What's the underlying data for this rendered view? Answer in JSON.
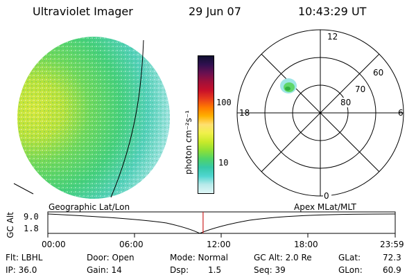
{
  "header": {
    "title": "Ultraviolet Imager",
    "date": "29 Jun 07",
    "time": "10:43:29 UT"
  },
  "colorbar": {
    "unit_label": "photon cm⁻²s⁻¹",
    "ticks": [
      "100",
      "10"
    ],
    "colors": [
      "#dff6f6",
      "#b8eaea",
      "#4fd6d0",
      "#36c9a8",
      "#4fd46a",
      "#8fe036",
      "#c9ea2a",
      "#f0f04a",
      "#ffe070",
      "#ffb000",
      "#ff7a00",
      "#e83c1c",
      "#c8102a",
      "#a0103a",
      "#6a1050",
      "#301050",
      "#101030"
    ]
  },
  "polar": {
    "labels": {
      "top": "12",
      "bottom": "0",
      "left": "18",
      "right": "6",
      "r60": "60",
      "r70": "70",
      "r80": "80"
    }
  },
  "timeline": {
    "y_axis_label": "GC Alt",
    "y_max": "9.0",
    "y_min": "1.8",
    "left_title": "Geographic Lat/Lon",
    "right_title": "Apex  MLat/MLT",
    "time_ticks": [
      "00:00",
      "06:00",
      "12:00",
      "18:00",
      "23:59"
    ],
    "current_time_fraction": 0.4469,
    "marker_color": "#cc2222"
  },
  "footer": {
    "flt": "Flt: LBHL",
    "ip": "IP: 36.0",
    "door": "Door: Open",
    "gain": "Gain: 14",
    "mode": "Mode: Normal",
    "dsp_label": "Dsp:",
    "dsp_value": "1.5",
    "gc_alt": "GC Alt: 2.0 Re",
    "seq": "Seq: 39",
    "glat_label": "GLat:",
    "glat_value": "72.3",
    "glon_label": "GLon:",
    "glon_value": "60.9"
  }
}
